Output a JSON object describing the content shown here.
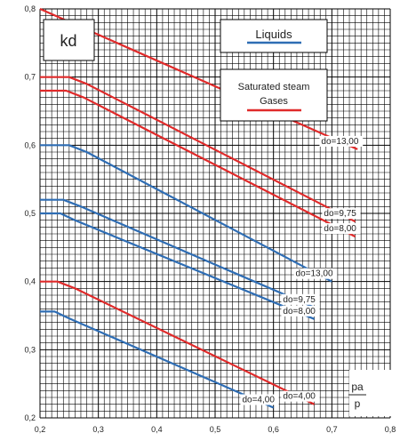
{
  "chart_data": {
    "type": "line",
    "ylabel": "kd",
    "xlabel_numerator": "pa",
    "xlabel_denominator": "p",
    "xlim": [
      0.2,
      0.8
    ],
    "ylim": [
      0.2,
      0.8
    ],
    "x_ticks": [
      "0,2",
      "0,3",
      "0,4",
      "0,5",
      "0,6",
      "0,7",
      "0,8"
    ],
    "y_ticks": [
      "0,2",
      "0,3",
      "0,4",
      "0,5",
      "0,6",
      "0,7",
      "0,8"
    ],
    "grid": true,
    "legend": [
      {
        "text": "Liquids",
        "color": "#2e6db4"
      },
      {
        "text": "Saturated steam",
        "text2": "Gases",
        "color": "#e02a2a"
      }
    ],
    "colors": {
      "liquids": "#2e6db4",
      "gases": "#e02a2a",
      "grid": "#000000"
    },
    "series": [
      {
        "group": "gases",
        "label": "do=13,00",
        "points": [
          [
            0.2,
            0.8
          ],
          [
            0.744,
            0.594
          ]
        ]
      },
      {
        "group": "gases",
        "label": "do=9,75",
        "points": [
          [
            0.2,
            0.7
          ],
          [
            0.25,
            0.7
          ],
          [
            0.28,
            0.69
          ],
          [
            0.74,
            0.488
          ]
        ]
      },
      {
        "group": "gases",
        "label": "do=8,00",
        "points": [
          [
            0.2,
            0.68
          ],
          [
            0.245,
            0.68
          ],
          [
            0.275,
            0.67
          ],
          [
            0.74,
            0.466
          ]
        ]
      },
      {
        "group": "liquids",
        "label": "do=13,00",
        "points": [
          [
            0.2,
            0.6
          ],
          [
            0.25,
            0.6
          ],
          [
            0.28,
            0.59
          ],
          [
            0.7,
            0.4
          ]
        ]
      },
      {
        "group": "liquids",
        "label": "do=9,75",
        "points": [
          [
            0.2,
            0.52
          ],
          [
            0.24,
            0.52
          ],
          [
            0.27,
            0.51
          ],
          [
            0.67,
            0.362
          ]
        ]
      },
      {
        "group": "liquids",
        "label": "do=8,00",
        "points": [
          [
            0.2,
            0.5
          ],
          [
            0.235,
            0.5
          ],
          [
            0.26,
            0.49
          ],
          [
            0.67,
            0.345
          ]
        ]
      },
      {
        "group": "gases",
        "label": "do=4,00",
        "points": [
          [
            0.2,
            0.4
          ],
          [
            0.23,
            0.4
          ],
          [
            0.26,
            0.39
          ],
          [
            0.67,
            0.22
          ]
        ]
      },
      {
        "group": "liquids",
        "label": "do=4,00",
        "points": [
          [
            0.2,
            0.356
          ],
          [
            0.225,
            0.356
          ],
          [
            0.25,
            0.346
          ],
          [
            0.6,
            0.215
          ]
        ]
      }
    ]
  }
}
